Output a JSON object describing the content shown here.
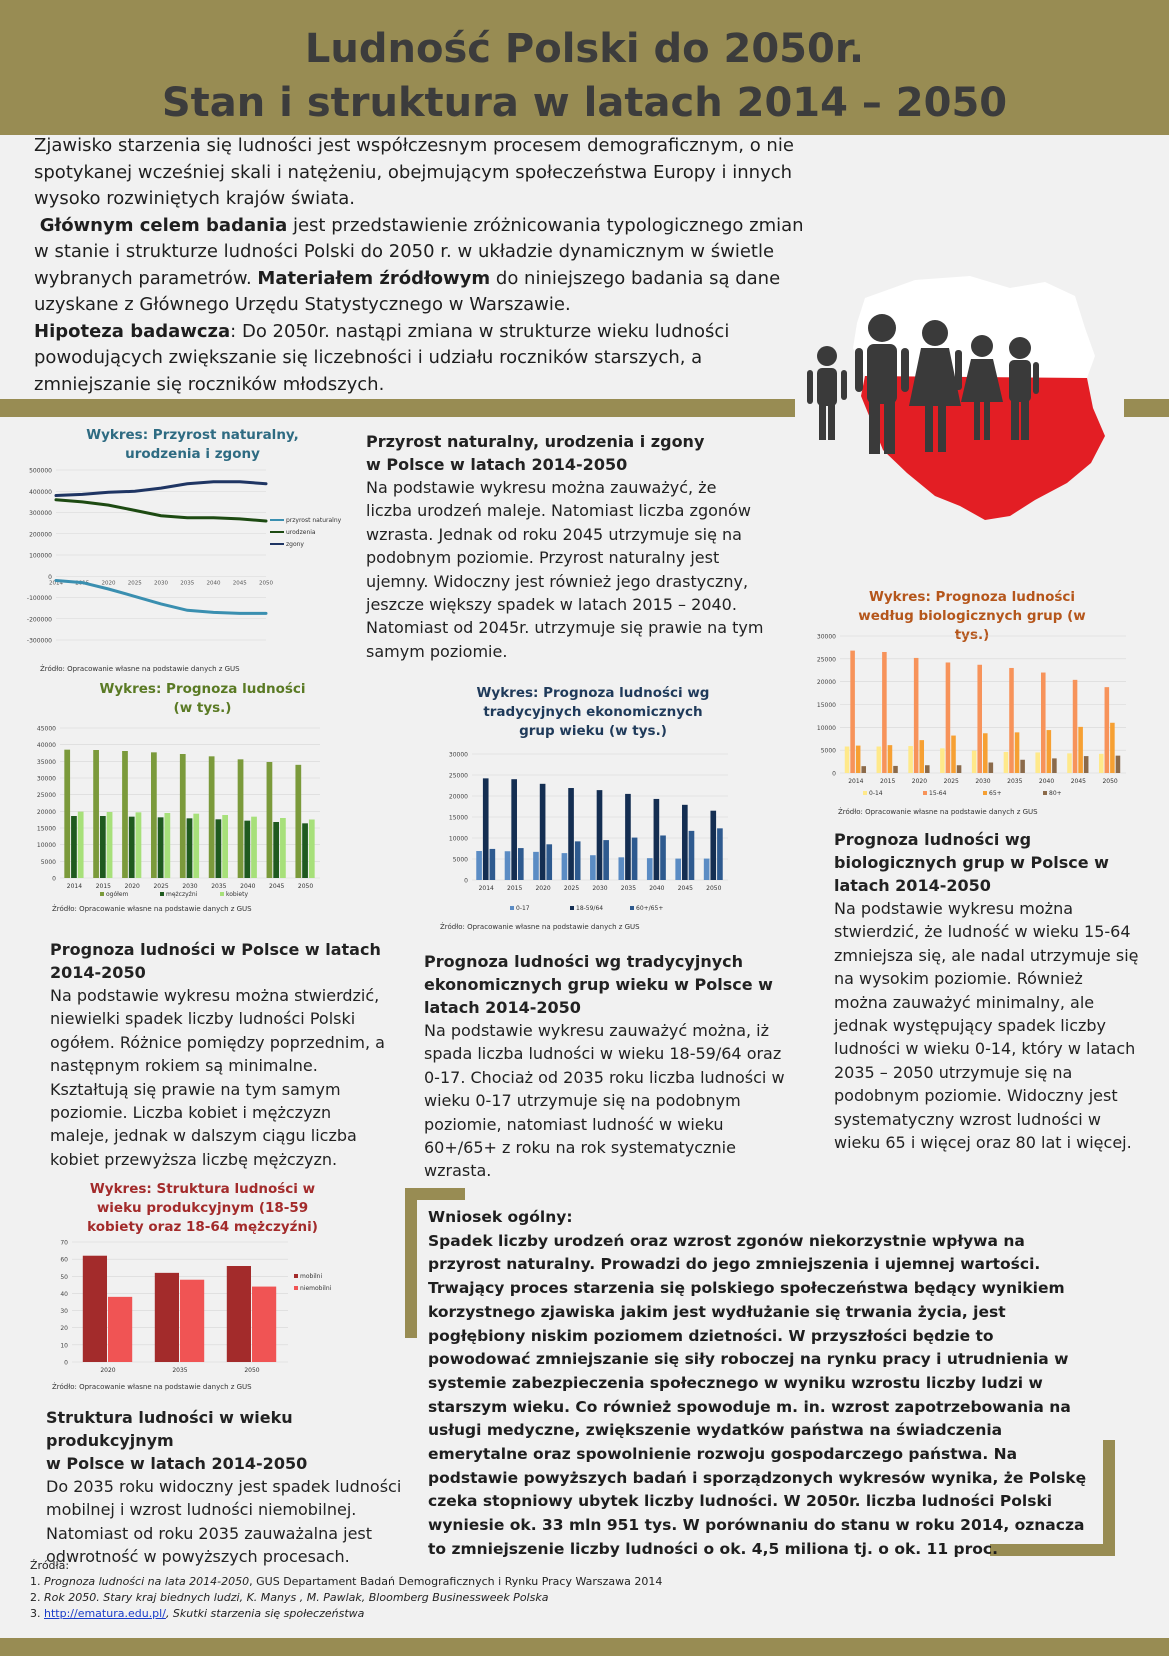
{
  "header": {
    "title_line1": "Ludność Polski do 2050r.",
    "title_line2": "Stan i struktura w latach 2014 – 2050"
  },
  "intro": {
    "p1": "Zjawisko starzenia się ludności jest współczesnym procesem demograficznym, o nie spotykanej wcześniej skali i natężeniu, obejmującym społeczeństwa Europy i innych wysoko rozwiniętych krajów świata.",
    "goal_label": "Głównym celem badania",
    "goal_text": " jest przedstawienie zróżnicowania typologicznego zmian w stanie i strukturze ludności Polski do 2050 r. w układzie dynamicznym w świetle wybranych parametrów.",
    "material_label": "Materiałem źródłowym",
    "material_text": " do niniejszego badania są dane uzyskane z Głównego Urzędu Statystycznego w Warszawie.",
    "hypothesis_label": "Hipoteza badawcza",
    "hypothesis_text": ": Do 2050r. nastąpi zmiana w strukturze wieku ludności powodujących zwiększanie się liczebności i udziału roczników starszych, a zmniejszanie się roczników młodszych."
  },
  "colors": {
    "band": "#988c53",
    "poland_red": "#e31e24",
    "people": "#3a3a3a"
  },
  "source_note": "Źródło: Opracowanie własne na podstawie danych z GUS",
  "sections": {
    "natural": {
      "title1": "Przyrost naturalny, urodzenia i zgony",
      "title2": "w Polsce w latach 2014-2050",
      "body": "Na podstawie wykresu można zauważyć, że liczba urodzeń maleje. Natomiast liczba zgonów wzrasta. Jednak od roku 2045 utrzymuje się na podobnym poziomie. Przyrost naturalny jest ujemny. Widoczny jest również jego drastyczny, jeszcze większy spadek w latach 2015 – 2040. Natomiast od 2045r. utrzymuje się prawie na tym samym poziomie."
    },
    "population": {
      "title1": "Prognoza ludności w Polsce w latach",
      "title2": "2014-2050",
      "body": "Na podstawie wykresu można stwierdzić, niewielki spadek liczby ludności Polski ogółem. Różnice pomiędzy poprzednim, a następnym rokiem są minimalne. Kształtują się prawie na tym samym poziomie. Liczba kobiet i mężczyzn maleje, jednak w dalszym ciągu liczba kobiet przewyższa liczbę mężczyzn."
    },
    "economic": {
      "title": "Prognoza ludności wg tradycyjnych ekonomicznych grup wieku w Polsce w latach 2014-2050",
      "body": "Na podstawie wykresu zauważyć można, iż spada liczba ludności w wieku 18-59/64 oraz 0-17. Chociaż od 2035 roku liczba ludności w wieku 0-17 utrzymuje się na podobnym poziomie, natomiast ludność w wieku 60+/65+ z roku na rok systematycznie wzrasta."
    },
    "biological": {
      "title": "Prognoza ludności wg biologicznych grup w Polsce w latach 2014-2050",
      "body": "Na podstawie wykresu można stwierdzić, że ludność w wieku 15-64 zmniejsza się, ale nadal utrzymuje się na wysokim poziomie. Również można zauważyć minimalny, ale jednak występujący spadek liczby ludności w wieku 0-14, który w latach 2035 – 2050 utrzymuje się na podobnym poziomie. Widoczny jest systematyczny wzrost ludności w wieku 65 i więcej oraz 80 lat i więcej."
    },
    "productive": {
      "title1": "Struktura ludności w wieku produkcyjnym",
      "title2": "w Polsce w latach 2014-2050",
      "body": "Do 2035 roku widoczny jest spadek ludności mobilnej i wzrost ludności niemobilnej. Natomiast od roku 2035 zauważalna jest odwrotność w powyższych procesach."
    }
  },
  "conclusion": {
    "heading": "Wniosek ogólny:",
    "body": "Spadek liczby urodzeń oraz wzrost zgonów niekorzystnie wpływa na przyrost naturalny. Prowadzi do jego zmniejszenia i ujemnej wartości. Trwający proces starzenia się polskiego społeczeństwa będący wynikiem korzystnego zjawiska jakim jest wydłużanie się trwania życia, jest pogłębiony niskim poziomem dzietności. W przyszłości będzie to powodować zmniejszanie się siły roboczej na rynku pracy i utrudnienia w systemie zabezpieczenia społecznego w wyniku wzrostu liczby ludzi w starszym wieku. Co również spowoduje m. in. wzrost zapotrzebowania na usługi medyczne, zwiększenie wydatków państwa na świadczenia emerytalne oraz spowolnienie rozwoju gospodarczego państwa. Na podstawie powyższych badań i sporządzonych wykresów wynika, że Polskę czeka stopniowy ubytek liczby ludności. W 2050r. liczba ludności Polski wyniesie ok. 33 mln 951 tys. W porównaniu do stanu w roku 2014, oznacza to zmniejszenie liczby ludności o ok. 4,5 miliona tj. o ok. 11 proc."
  },
  "sources": {
    "heading": "Źródła:",
    "items": [
      {
        "num": "1. ",
        "italic": "Prognoza ludności na lata 2014-2050",
        "rest": ", GUS Departament Badań Demograficznych i Rynku Pracy Warszawa 2014"
      },
      {
        "num": "2. ",
        "italic": "Rok 2050. Stary kraj biednych ludzi, K. Manys , M. Pawlak, Bloomberg Businessweek Polska",
        "rest": ""
      },
      {
        "num": "3. ",
        "link": "http://ematura.edu.pl/",
        "italic": ", Skutki starzenia się społeczeństwa",
        "rest": ""
      }
    ]
  },
  "chart_data": [
    {
      "type": "line",
      "title": "Wykres: Przyrost naturalny, urodzenia i zgony",
      "x": [
        "2014",
        "2015",
        "2020",
        "2025",
        "2030",
        "2035",
        "2040",
        "2045",
        "2050"
      ],
      "ylim": [
        -300000,
        500000
      ],
      "yticks": [
        "500000",
        "400000",
        "300000",
        "200000",
        "100000",
        "0",
        "-100000",
        "-200000",
        "-300000"
      ],
      "series": [
        {
          "name": "przyrost naturalny",
          "color": "#3a8fb0",
          "values": [
            -20000,
            -30000,
            -60000,
            -95000,
            -130000,
            -160000,
            -170000,
            -175000,
            -175000
          ]
        },
        {
          "name": "urodzenia",
          "color": "#1d4a12",
          "values": [
            360000,
            350000,
            335000,
            310000,
            285000,
            275000,
            275000,
            270000,
            260000
          ]
        },
        {
          "name": "zgony",
          "color": "#1f3563",
          "values": [
            380000,
            385000,
            395000,
            400000,
            415000,
            435000,
            445000,
            445000,
            435000
          ]
        }
      ]
    },
    {
      "type": "bar",
      "title": "Wykres: Prognoza ludności (w tys.)",
      "categories": [
        "2014",
        "2015",
        "2020",
        "2025",
        "2030",
        "2035",
        "2040",
        "2045",
        "2050"
      ],
      "ylim": [
        0,
        45000
      ],
      "yticks": [
        "45000",
        "40000",
        "35000",
        "30000",
        "25000",
        "20000",
        "15000",
        "10000",
        "5000",
        "0"
      ],
      "series": [
        {
          "name": "ogółem",
          "color": "#7b9a3b",
          "values": [
            38500,
            38400,
            38100,
            37700,
            37200,
            36500,
            35600,
            34800,
            33950
          ]
        },
        {
          "name": "mężczyźni",
          "color": "#1f5a1f",
          "values": [
            18600,
            18600,
            18400,
            18200,
            17900,
            17600,
            17200,
            16800,
            16400
          ]
        },
        {
          "name": "kobiety",
          "color": "#a7e07a",
          "values": [
            19900,
            19800,
            19700,
            19500,
            19300,
            18900,
            18400,
            18000,
            17550
          ]
        }
      ]
    },
    {
      "type": "bar",
      "title": "Wykres: Prognoza ludności wg tradycyjnych ekonomicznych grup wieku (w tys.)",
      "categories": [
        "2014",
        "2015",
        "2020",
        "2025",
        "2030",
        "2035",
        "2040",
        "2045",
        "2050"
      ],
      "ylim": [
        0,
        30000
      ],
      "yticks": [
        "30000",
        "25000",
        "20000",
        "15000",
        "10000",
        "5000",
        "0"
      ],
      "series": [
        {
          "name": "0-17",
          "color": "#5b8cc4",
          "values": [
            6900,
            6850,
            6700,
            6400,
            5900,
            5400,
            5200,
            5100,
            5100
          ]
        },
        {
          "name": "18-59/64",
          "color": "#142e52",
          "values": [
            24200,
            24000,
            22900,
            21900,
            21400,
            20500,
            19300,
            17900,
            16500
          ]
        },
        {
          "name": "60+/65+",
          "color": "#2e5a8f",
          "values": [
            7400,
            7600,
            8500,
            9200,
            9500,
            10100,
            10600,
            11700,
            12300
          ]
        }
      ]
    },
    {
      "type": "bar",
      "title": "Wykres: Prognoza ludności według biologicznych grup (w tys.)",
      "categories": [
        "2014",
        "2015",
        "2020",
        "2025",
        "2030",
        "2035",
        "2040",
        "2045",
        "2050"
      ],
      "ylim": [
        0,
        30000
      ],
      "yticks": [
        "30000",
        "25000",
        "20000",
        "15000",
        "10000",
        "5000",
        "0"
      ],
      "series": [
        {
          "name": "0-14",
          "color": "#ffe98a",
          "values": [
            5800,
            5800,
            5900,
            5400,
            4900,
            4600,
            4500,
            4300,
            4200
          ]
        },
        {
          "name": "15-64",
          "color": "#f7935a",
          "values": [
            26800,
            26500,
            25200,
            24200,
            23700,
            23000,
            22000,
            20400,
            18800
          ]
        },
        {
          "name": "65+",
          "color": "#f6a033",
          "values": [
            6000,
            6100,
            7200,
            8200,
            8700,
            8900,
            9400,
            10100,
            11000
          ]
        },
        {
          "name": "80+",
          "color": "#8b6a4a",
          "values": [
            1500,
            1550,
            1700,
            1700,
            2300,
            2900,
            3200,
            3700,
            3800
          ]
        }
      ]
    },
    {
      "type": "bar",
      "title": "Wykres: Struktura ludności w wieku produkcyjnym (18-59 kobiety oraz 18-64 mężczyźni)",
      "categories": [
        "2020",
        "2035",
        "2050"
      ],
      "ylim": [
        0,
        70
      ],
      "yticks": [
        "70",
        "60",
        "50",
        "40",
        "30",
        "20",
        "10",
        "0"
      ],
      "series": [
        {
          "name": "mobilni",
          "color": "#a32b2b",
          "values": [
            62,
            52,
            56
          ]
        },
        {
          "name": "niemobilni",
          "color": "#f05454",
          "values": [
            38,
            48,
            44
          ]
        }
      ]
    }
  ]
}
